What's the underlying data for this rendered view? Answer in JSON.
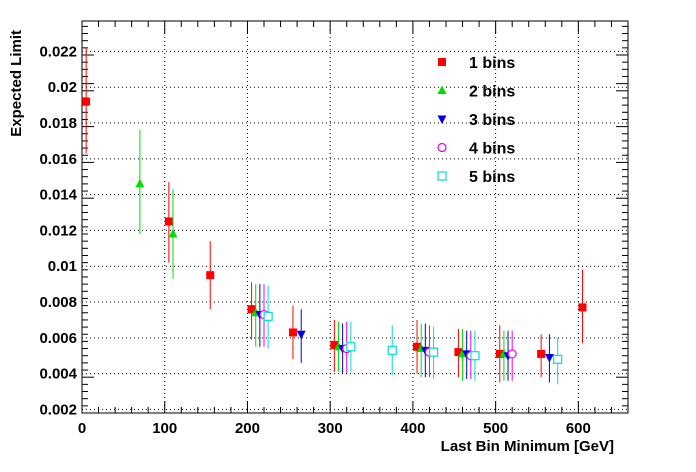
{
  "chart_data": {
    "type": "scatter",
    "title": "",
    "xlabel": "Last Bin Minimum [GeV]",
    "ylabel": "Expected Limit",
    "xlim": [
      0,
      660
    ],
    "ylim": [
      0.0018,
      0.0237
    ],
    "grid": true,
    "legend_position": "top-right",
    "x_ticks": [
      {
        "value": 0,
        "label": "0"
      },
      {
        "value": 100,
        "label": "100"
      },
      {
        "value": 200,
        "label": "200"
      },
      {
        "value": 300,
        "label": "300"
      },
      {
        "value": 400,
        "label": "400"
      },
      {
        "value": 500,
        "label": "500"
      },
      {
        "value": 600,
        "label": "600"
      }
    ],
    "y_ticks": [
      {
        "value": 0.002,
        "label": "0.002"
      },
      {
        "value": 0.004,
        "label": "0.004"
      },
      {
        "value": 0.006,
        "label": "0.006"
      },
      {
        "value": 0.008,
        "label": "0.008"
      },
      {
        "value": 0.01,
        "label": "0.01"
      },
      {
        "value": 0.012,
        "label": "0.012"
      },
      {
        "value": 0.014,
        "label": "0.014"
      },
      {
        "value": 0.016,
        "label": "0.016"
      },
      {
        "value": 0.018,
        "label": "0.018"
      },
      {
        "value": 0.02,
        "label": "0.02"
      },
      {
        "value": 0.022,
        "label": "0.022"
      }
    ],
    "series": [
      {
        "name": "1 bins",
        "color": "#ff0000",
        "marker": "square-filled",
        "points": [
          {
            "x": 5,
            "y": 0.0192,
            "lo": 0.0163,
            "hi": 0.0222
          },
          {
            "x": 105,
            "y": 0.0125,
            "lo": 0.0102,
            "hi": 0.0147
          },
          {
            "x": 155,
            "y": 0.0095,
            "lo": 0.0076,
            "hi": 0.0114
          },
          {
            "x": 205,
            "y": 0.0076,
            "lo": 0.0059,
            "hi": 0.0091
          },
          {
            "x": 255,
            "y": 0.0063,
            "lo": 0.0048,
            "hi": 0.0078
          },
          {
            "x": 305,
            "y": 0.0056,
            "lo": 0.0041,
            "hi": 0.007
          },
          {
            "x": 405,
            "y": 0.0055,
            "lo": 0.004,
            "hi": 0.007
          },
          {
            "x": 455,
            "y": 0.0052,
            "lo": 0.0038,
            "hi": 0.0065
          },
          {
            "x": 505,
            "y": 0.0051,
            "lo": 0.0035,
            "hi": 0.0067
          },
          {
            "x": 555,
            "y": 0.0051,
            "lo": 0.0038,
            "hi": 0.0062
          },
          {
            "x": 605,
            "y": 0.0077,
            "lo": 0.0057,
            "hi": 0.0098
          }
        ]
      },
      {
        "name": "2 bins",
        "color": "#00dd00",
        "marker": "triangle-up-filled",
        "points": [
          {
            "x": 70,
            "y": 0.0146,
            "lo": 0.0118,
            "hi": 0.0176
          },
          {
            "x": 110,
            "y": 0.0118,
            "lo": 0.0093,
            "hi": 0.0143
          },
          {
            "x": 210,
            "y": 0.0074,
            "lo": 0.0055,
            "hi": 0.009
          },
          {
            "x": 310,
            "y": 0.0055,
            "lo": 0.0041,
            "hi": 0.0069
          },
          {
            "x": 410,
            "y": 0.0054,
            "lo": 0.0038,
            "hi": 0.0068
          },
          {
            "x": 460,
            "y": 0.0051,
            "lo": 0.0036,
            "hi": 0.0065
          },
          {
            "x": 510,
            "y": 0.0051,
            "lo": 0.0036,
            "hi": 0.0064
          }
        ]
      },
      {
        "name": "3 bins",
        "color": "#0000ee",
        "marker": "triangle-down-filled",
        "points": [
          {
            "x": 215,
            "y": 0.0073,
            "lo": 0.0055,
            "hi": 0.009
          },
          {
            "x": 265,
            "y": 0.0062,
            "lo": 0.0046,
            "hi": 0.0076
          },
          {
            "x": 315,
            "y": 0.0054,
            "lo": 0.004,
            "hi": 0.0068
          },
          {
            "x": 415,
            "y": 0.0053,
            "lo": 0.0038,
            "hi": 0.0068
          },
          {
            "x": 465,
            "y": 0.0051,
            "lo": 0.0037,
            "hi": 0.0064
          },
          {
            "x": 515,
            "y": 0.005,
            "lo": 0.0036,
            "hi": 0.0064
          },
          {
            "x": 565,
            "y": 0.0049,
            "lo": 0.0035,
            "hi": 0.0062
          }
        ]
      },
      {
        "name": "4 bins",
        "color": "#ee00ee",
        "marker": "circle-open",
        "points": [
          {
            "x": 220,
            "y": 0.0073,
            "lo": 0.0055,
            "hi": 0.009
          },
          {
            "x": 320,
            "y": 0.0054,
            "lo": 0.004,
            "hi": 0.0069
          },
          {
            "x": 420,
            "y": 0.0052,
            "lo": 0.0038,
            "hi": 0.0067
          },
          {
            "x": 470,
            "y": 0.005,
            "lo": 0.0037,
            "hi": 0.0064
          },
          {
            "x": 520,
            "y": 0.0051,
            "lo": 0.0036,
            "hi": 0.0064
          }
        ]
      },
      {
        "name": "5 bins",
        "color": "#00dddd",
        "marker": "square-open",
        "points": [
          {
            "x": 225,
            "y": 0.0072,
            "lo": 0.0054,
            "hi": 0.0089
          },
          {
            "x": 325,
            "y": 0.0055,
            "lo": 0.0041,
            "hi": 0.0069
          },
          {
            "x": 375,
            "y": 0.0053,
            "lo": 0.0039,
            "hi": 0.0067
          },
          {
            "x": 425,
            "y": 0.0052,
            "lo": 0.0037,
            "hi": 0.0066
          },
          {
            "x": 475,
            "y": 0.005,
            "lo": 0.0036,
            "hi": 0.0064
          },
          {
            "x": 575,
            "y": 0.0048,
            "lo": 0.0034,
            "hi": 0.006
          }
        ]
      }
    ]
  }
}
